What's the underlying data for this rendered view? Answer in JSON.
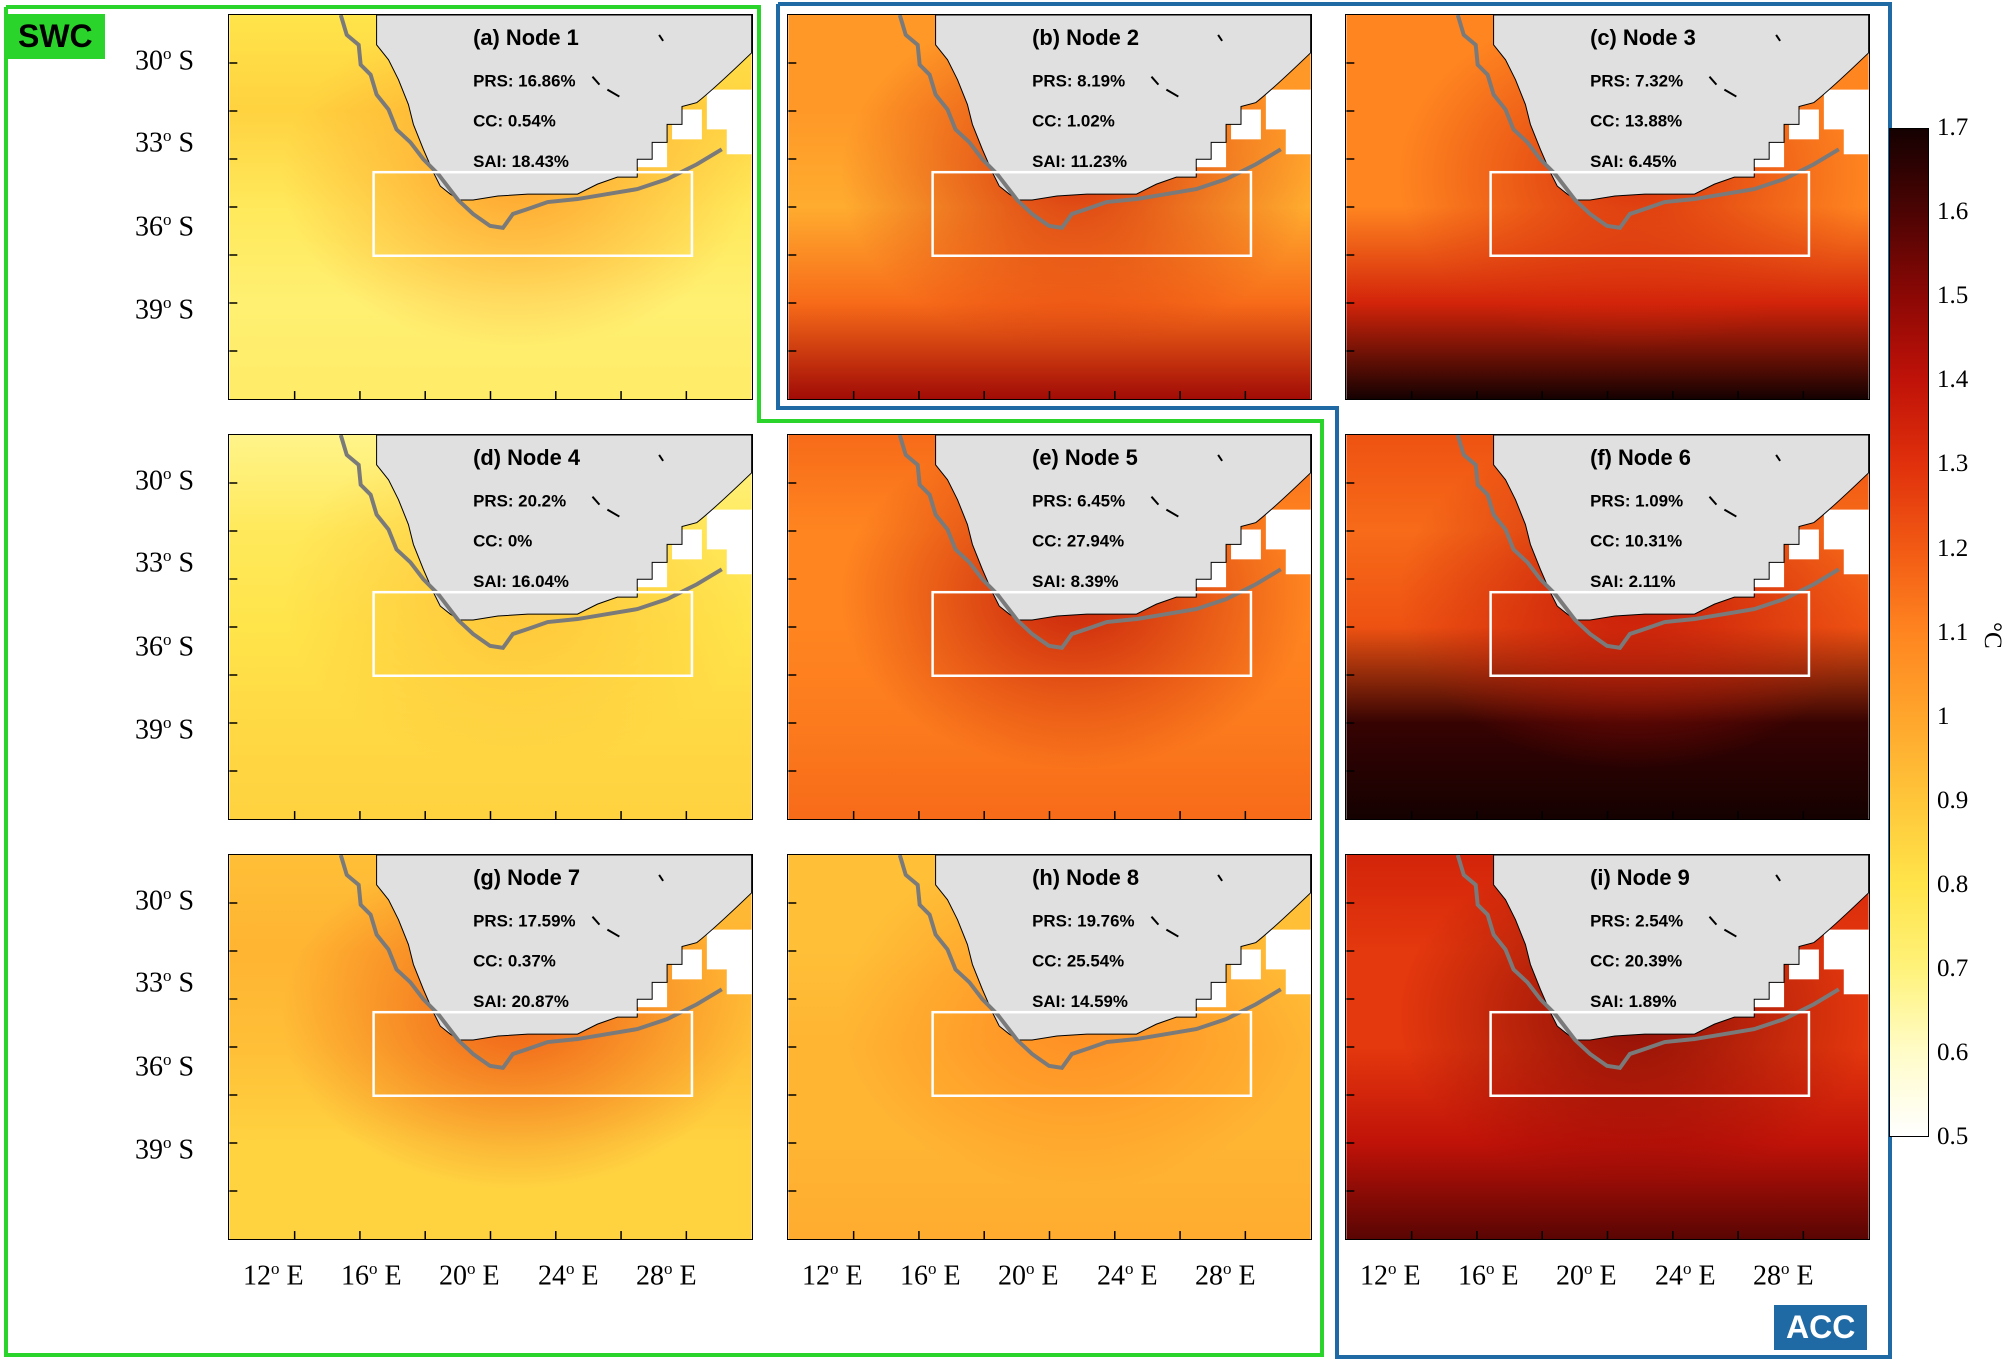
{
  "figure": {
    "colors": {
      "swc_outline": "#2bd42b",
      "acc_outline": "#1f6aa5",
      "land": "#e0e0e0",
      "study_box": "#ffffff",
      "coast_track": "#7a7a7a"
    },
    "regions": [
      {
        "name": "SWC",
        "color": "#2bd42b"
      },
      {
        "name": "ACC",
        "color": "#1f6aa5"
      }
    ],
    "lat_ticks": [
      "30",
      "33",
      "36",
      "39"
    ],
    "lat_suffix": "S",
    "lon_ticks": [
      "12",
      "16",
      "20",
      "24",
      "28"
    ],
    "lon_suffix": "E",
    "degree_mark": "o"
  },
  "panels": [
    {
      "id": "a",
      "title": "(a) Node 1",
      "prs": "PRS: 16.86%",
      "cc": "CC: 0.54%",
      "sai": "SAI: 18.43%",
      "intensity": [
        0.25,
        0.3,
        0.22,
        0.18,
        0.2
      ],
      "coast_intensity": 0.45
    },
    {
      "id": "b",
      "title": "(b) Node 2",
      "prs": "PRS: 8.19%",
      "cc": "CC: 1.02%",
      "sai": "SAI: 11.23%",
      "intensity": [
        0.45,
        0.45,
        0.4,
        0.55,
        0.8
      ],
      "coast_intensity": 0.7
    },
    {
      "id": "c",
      "title": "(c) Node 3",
      "prs": "PRS: 7.32%",
      "cc": "CC: 13.88%",
      "sai": "SAI: 6.45%",
      "intensity": [
        0.5,
        0.5,
        0.5,
        0.7,
        1.0
      ],
      "coast_intensity": 0.7
    },
    {
      "id": "d",
      "title": "(d) Node 4",
      "prs": "PRS: 20.2%",
      "cc": "CC: 0%",
      "sai": "SAI: 16.04%",
      "intensity": [
        0.15,
        0.22,
        0.25,
        0.28,
        0.3
      ],
      "coast_intensity": 0.35
    },
    {
      "id": "e",
      "title": "(e) Node 5",
      "prs": "PRS: 6.45%",
      "cc": "CC: 27.94%",
      "sai": "SAI: 8.39%",
      "intensity": [
        0.55,
        0.5,
        0.5,
        0.52,
        0.55
      ],
      "coast_intensity": 0.75
    },
    {
      "id": "f",
      "title": "(f) Node 6",
      "prs": "PRS: 1.09%",
      "cc": "CC: 10.31%",
      "sai": "SAI: 2.11%",
      "intensity": [
        0.6,
        0.55,
        0.6,
        0.95,
        1.0
      ],
      "coast_intensity": 0.75
    },
    {
      "id": "g",
      "title": "(g) Node 7",
      "prs": "PRS: 17.59%",
      "cc": "CC: 0.37%",
      "sai": "SAI: 20.87%",
      "intensity": [
        0.35,
        0.38,
        0.35,
        0.3,
        0.3
      ],
      "coast_intensity": 0.6
    },
    {
      "id": "h",
      "title": "(h) Node 8",
      "prs": "PRS: 19.76%",
      "cc": "CC: 25.54%",
      "sai": "SAI: 14.59%",
      "intensity": [
        0.35,
        0.35,
        0.38,
        0.38,
        0.4
      ],
      "coast_intensity": 0.5
    },
    {
      "id": "i",
      "title": "(i) Node 9",
      "prs": "PRS: 2.54%",
      "cc": "CC: 20.39%",
      "sai": "SAI: 1.89%",
      "intensity": [
        0.7,
        0.65,
        0.65,
        0.75,
        0.9
      ],
      "coast_intensity": 0.85
    }
  ],
  "colorbar": {
    "ticks": [
      "1.7",
      "1.6",
      "1.5",
      "1.4",
      "1.3",
      "1.2",
      "1.1",
      "1",
      "0.9",
      "0.8",
      "0.7",
      "0.6",
      "0.5"
    ],
    "min": 0.5,
    "max": 1.7,
    "unit": "°C",
    "stops": [
      "#ffffff",
      "#fffcc8",
      "#fff27a",
      "#ffe44a",
      "#ffc63a",
      "#ffa52c",
      "#ff8520",
      "#f25a14",
      "#e0300c",
      "#c01208",
      "#8c0805",
      "#4c0403",
      "#150101"
    ]
  }
}
